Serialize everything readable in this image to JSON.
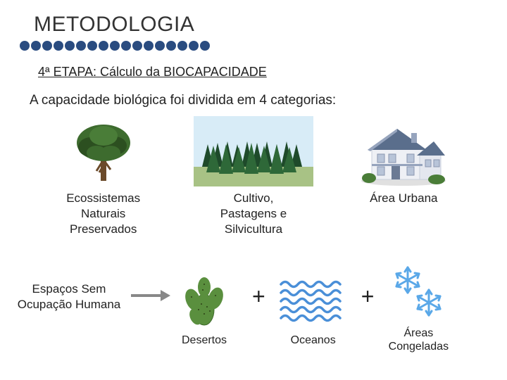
{
  "title": "METODOLOGIA",
  "dot_color": "#2a4c80",
  "dot_count": 17,
  "subtitle": "4ª ETAPA: Cálculo da BIOCAPACIDADE",
  "body": "A capacidade biológica foi dividida em 4 categorias:",
  "categories": {
    "ecosystems": {
      "label_l1": "Ecossistemas",
      "label_l2": "Naturais",
      "label_l3": "Preservados"
    },
    "cultivation": {
      "label_l1": "Cultivo,",
      "label_l2": "Pastagens e",
      "label_l3": "Silvicultura"
    },
    "urban": {
      "label_l1": "Área Urbana"
    }
  },
  "row2": {
    "left_l1": "Espaços Sem",
    "left_l2": "Ocupação Humana",
    "desert": "Desertos",
    "ocean": "Oceanos",
    "frozen_l1": "Áreas",
    "frozen_l2": "Congeladas",
    "plus": "+"
  },
  "colors": {
    "tree_trunk": "#6b4a2a",
    "tree_foliage": "#3d6b2e",
    "tree_foliage_dark": "#2c4f20",
    "forest_green_dark": "#1e4a2a",
    "forest_green": "#2e6838",
    "ground": "#a8c285",
    "sky": "#d8ecf7",
    "house_wall": "#eef0f5",
    "house_roof": "#5a6e8c",
    "house_trim": "#96a4bd",
    "house_shadow": "#c8cfdc",
    "cactus": "#5a8f3e",
    "cactus_dark": "#3e6b2a",
    "ocean_blue": "#4a8fd8",
    "snowflake": "#5aa8e8",
    "arrow": "#888888"
  }
}
